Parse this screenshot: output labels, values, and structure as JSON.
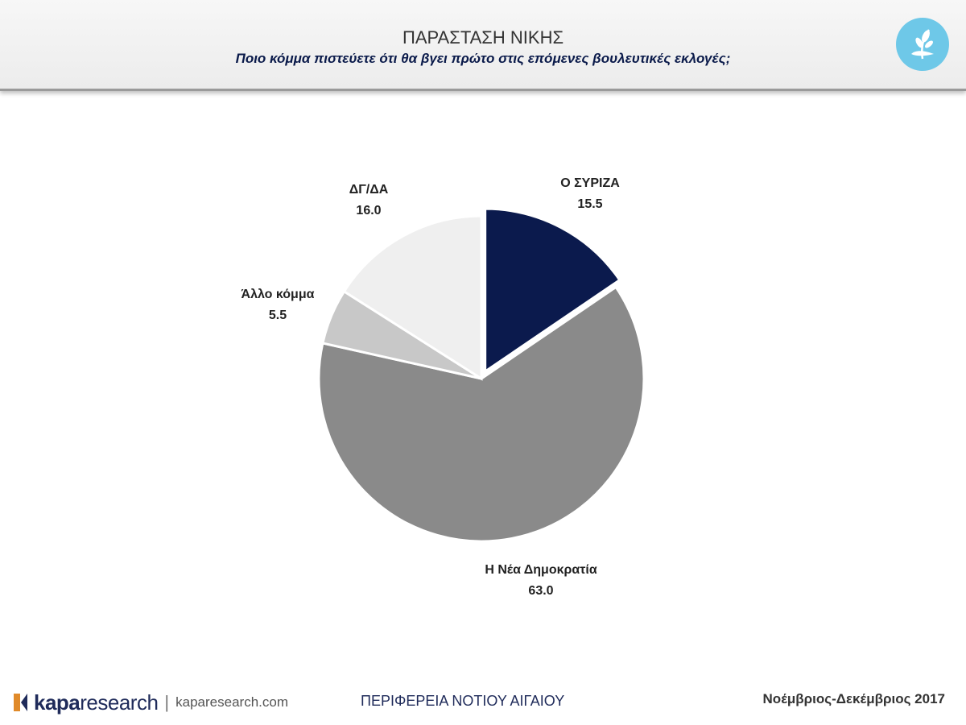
{
  "header": {
    "title": "ΠΑΡΑΣΤΑΣΗ ΝΙΚΗΣ",
    "subtitle": "Ποιο κόμμα πιστεύετε ότι θα βγει πρώτο στις επόμενες βουλευτικές εκλογές;"
  },
  "logo": {
    "icon": "olive-branch-icon",
    "color": "#6ec8e8"
  },
  "chart_data": {
    "type": "pie",
    "title": "ΠΑΡΑΣΤΑΣΗ ΝΙΚΗΣ",
    "subtitle": "Ποιο κόμμα πιστεύετε ότι θα βγει πρώτο στις επόμενες βουλευτικές εκλογές;",
    "start": "top, clockwise",
    "slices": [
      {
        "label": "Ο ΣΥΡΙΖΑ",
        "value": 15.5,
        "value_label": "15.5",
        "color": "#0b1a4d",
        "exploded": true
      },
      {
        "label": "Η Νέα Δημοκρατία",
        "value": 63.0,
        "value_label": "63.0",
        "color": "#8a8a8a",
        "exploded": false
      },
      {
        "label": "Άλλο κόμμα",
        "value": 5.5,
        "value_label": "5.5",
        "color": "#c8c8c8",
        "exploded": false
      },
      {
        "label": "ΔΓ/ΔΑ",
        "value": 16.0,
        "value_label": "16.0",
        "color": "#efefef",
        "exploded": false
      }
    ]
  },
  "footer": {
    "brand_bold": "kapa",
    "brand_light": "research",
    "separator": "|",
    "url": "kaparesearch.com",
    "region": "ΠΕΡΙΦΕΡΕΙΑ ΝΟΤΙΟΥ ΑΙΓΑΙΟΥ",
    "date": "Νοέμβριος-Δεκέμβριος 2017",
    "brand_color": "#1f2b5a"
  }
}
